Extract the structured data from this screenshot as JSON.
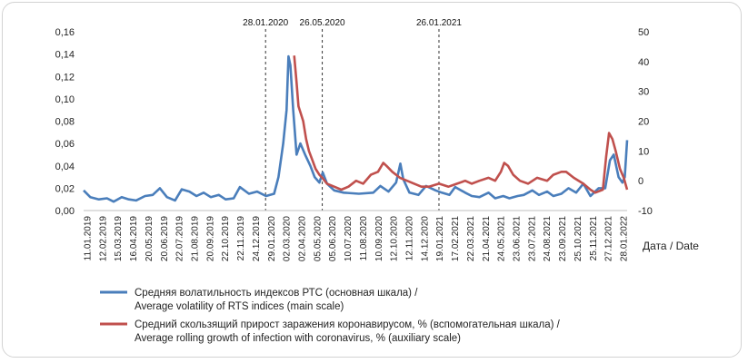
{
  "chart_data": {
    "type": "line",
    "xlabel": "Дата / Date",
    "y_left": {
      "min": 0,
      "max": 0.16,
      "ticks": [
        "0,00",
        "0,02",
        "0,04",
        "0,06",
        "0,08",
        "0,10",
        "0,12",
        "0,14",
        "0,16"
      ]
    },
    "y_right": {
      "min": -10,
      "max": 50,
      "ticks": [
        "-10",
        "0",
        "10",
        "20",
        "30",
        "40",
        "50"
      ]
    },
    "x_range": [
      "2019-01-11",
      "2022-02-25"
    ],
    "x_ticks": [
      "11.01.2019",
      "12.02.2019",
      "15.03.2019",
      "16.04.2019",
      "20.05.2019",
      "20.06.2019",
      "22.07.2019",
      "21.08.2019",
      "20.09.2019",
      "22.10.2019",
      "22.11.2019",
      "24.12.2019",
      "29.01.2020",
      "02.03.2020",
      "02.04.2020",
      "05.05.2020",
      "05.06.2020",
      "10.07.2020",
      "11.08.2020",
      "10.09.2020",
      "12.10.2020",
      "12.11.2020",
      "14.12.2020",
      "19.01.2021",
      "17.02.2021",
      "22.03.2021",
      "21.04.2021",
      "24.05.2021",
      "23.06.2021",
      "23.07.2021",
      "24.08.2021",
      "23.09.2021",
      "25.10.2021",
      "25.11.2021",
      "27.12.2021",
      "28.01.2022"
    ],
    "events": [
      {
        "date": "2020-01-28",
        "label": "28.01.2020"
      },
      {
        "date": "2020-05-26",
        "label": "26.05.2020"
      },
      {
        "date": "2021-01-26",
        "label": "26.01.2021"
      }
    ],
    "series": [
      {
        "name": "Средняя волатильность индексов РТС (основная шкала) / Average volatility of RTS indices (main scale)",
        "axis": "left",
        "color": "#4a7ebb",
        "points": [
          [
            "2019-01-11",
            0.018
          ],
          [
            "2019-01-25",
            0.012
          ],
          [
            "2019-02-12",
            0.01
          ],
          [
            "2019-03-01",
            0.011
          ],
          [
            "2019-03-15",
            0.008
          ],
          [
            "2019-04-01",
            0.012
          ],
          [
            "2019-04-16",
            0.01
          ],
          [
            "2019-05-01",
            0.009
          ],
          [
            "2019-05-20",
            0.013
          ],
          [
            "2019-06-05",
            0.014
          ],
          [
            "2019-06-20",
            0.02
          ],
          [
            "2019-07-05",
            0.012
          ],
          [
            "2019-07-22",
            0.009
          ],
          [
            "2019-08-05",
            0.019
          ],
          [
            "2019-08-21",
            0.017
          ],
          [
            "2019-09-05",
            0.013
          ],
          [
            "2019-09-20",
            0.016
          ],
          [
            "2019-10-05",
            0.012
          ],
          [
            "2019-10-22",
            0.014
          ],
          [
            "2019-11-05",
            0.01
          ],
          [
            "2019-11-22",
            0.011
          ],
          [
            "2019-12-05",
            0.021
          ],
          [
            "2019-12-24",
            0.015
          ],
          [
            "2020-01-10",
            0.017
          ],
          [
            "2020-01-29",
            0.013
          ],
          [
            "2020-02-15",
            0.015
          ],
          [
            "2020-02-24",
            0.03
          ],
          [
            "2020-03-05",
            0.06
          ],
          [
            "2020-03-12",
            0.09
          ],
          [
            "2020-03-16",
            0.138
          ],
          [
            "2020-03-20",
            0.13
          ],
          [
            "2020-03-26",
            0.09
          ],
          [
            "2020-04-02",
            0.05
          ],
          [
            "2020-04-10",
            0.06
          ],
          [
            "2020-04-20",
            0.05
          ],
          [
            "2020-05-01",
            0.04
          ],
          [
            "2020-05-10",
            0.03
          ],
          [
            "2020-05-20",
            0.025
          ],
          [
            "2020-05-27",
            0.034
          ],
          [
            "2020-06-05",
            0.024
          ],
          [
            "2020-06-20",
            0.018
          ],
          [
            "2020-07-10",
            0.016
          ],
          [
            "2020-08-11",
            0.015
          ],
          [
            "2020-09-10",
            0.016
          ],
          [
            "2020-09-25",
            0.022
          ],
          [
            "2020-10-12",
            0.017
          ],
          [
            "2020-10-28",
            0.025
          ],
          [
            "2020-11-06",
            0.042
          ],
          [
            "2020-11-12",
            0.028
          ],
          [
            "2020-11-25",
            0.016
          ],
          [
            "2020-12-14",
            0.014
          ],
          [
            "2020-12-30",
            0.022
          ],
          [
            "2021-01-19",
            0.018
          ],
          [
            "2021-02-01",
            0.016
          ],
          [
            "2021-02-17",
            0.014
          ],
          [
            "2021-03-01",
            0.021
          ],
          [
            "2021-03-22",
            0.016
          ],
          [
            "2021-04-05",
            0.013
          ],
          [
            "2021-04-21",
            0.012
          ],
          [
            "2021-05-10",
            0.016
          ],
          [
            "2021-05-24",
            0.011
          ],
          [
            "2021-06-10",
            0.013
          ],
          [
            "2021-06-23",
            0.011
          ],
          [
            "2021-07-10",
            0.013
          ],
          [
            "2021-07-23",
            0.014
          ],
          [
            "2021-08-10",
            0.018
          ],
          [
            "2021-08-24",
            0.014
          ],
          [
            "2021-09-10",
            0.017
          ],
          [
            "2021-09-23",
            0.013
          ],
          [
            "2021-10-10",
            0.015
          ],
          [
            "2021-10-25",
            0.02
          ],
          [
            "2021-11-10",
            0.016
          ],
          [
            "2021-11-25",
            0.024
          ],
          [
            "2021-12-10",
            0.013
          ],
          [
            "2021-12-27",
            0.02
          ],
          [
            "2022-01-10",
            0.02
          ],
          [
            "2022-01-20",
            0.045
          ],
          [
            "2022-01-28",
            0.05
          ],
          [
            "2022-02-07",
            0.03
          ],
          [
            "2022-02-15",
            0.025
          ],
          [
            "2022-02-20",
            0.03
          ],
          [
            "2022-02-25",
            0.063
          ]
        ]
      },
      {
        "name": "Средний скользящий прирост заражения коронавирусом, % (вспомогательная шкала) / Average rolling growth of infection with coronavirus, % (auxiliary scale)",
        "axis": "right",
        "color": "#c0504d",
        "points": [
          [
            "2020-03-28",
            42
          ],
          [
            "2020-04-02",
            33
          ],
          [
            "2020-04-06",
            25
          ],
          [
            "2020-04-10",
            23
          ],
          [
            "2020-04-16",
            20
          ],
          [
            "2020-04-22",
            14
          ],
          [
            "2020-04-28",
            10
          ],
          [
            "2020-05-05",
            7
          ],
          [
            "2020-05-12",
            4
          ],
          [
            "2020-05-20",
            2
          ],
          [
            "2020-05-26",
            1
          ],
          [
            "2020-06-05",
            -1
          ],
          [
            "2020-06-20",
            -2
          ],
          [
            "2020-07-05",
            -3
          ],
          [
            "2020-07-20",
            -2
          ],
          [
            "2020-08-05",
            0
          ],
          [
            "2020-08-20",
            -1
          ],
          [
            "2020-09-05",
            2
          ],
          [
            "2020-09-20",
            3
          ],
          [
            "2020-10-01",
            6
          ],
          [
            "2020-10-08",
            5
          ],
          [
            "2020-10-20",
            3
          ],
          [
            "2020-11-05",
            1
          ],
          [
            "2020-11-20",
            0
          ],
          [
            "2020-12-05",
            -1
          ],
          [
            "2020-12-20",
            -2
          ],
          [
            "2021-01-05",
            -2
          ],
          [
            "2021-01-26",
            -1
          ],
          [
            "2021-02-15",
            -2
          ],
          [
            "2021-03-05",
            -1
          ],
          [
            "2021-03-22",
            0
          ],
          [
            "2021-04-05",
            -1
          ],
          [
            "2021-04-21",
            0
          ],
          [
            "2021-05-10",
            1
          ],
          [
            "2021-05-24",
            0
          ],
          [
            "2021-06-05",
            3
          ],
          [
            "2021-06-12",
            6
          ],
          [
            "2021-06-20",
            5
          ],
          [
            "2021-07-01",
            2
          ],
          [
            "2021-07-15",
            0
          ],
          [
            "2021-08-01",
            -1
          ],
          [
            "2021-08-20",
            1
          ],
          [
            "2021-09-10",
            0
          ],
          [
            "2021-09-23",
            2
          ],
          [
            "2021-10-10",
            3
          ],
          [
            "2021-10-20",
            3
          ],
          [
            "2021-11-05",
            1
          ],
          [
            "2021-11-25",
            -1
          ],
          [
            "2021-12-10",
            -3
          ],
          [
            "2021-12-20",
            -4
          ],
          [
            "2022-01-05",
            -3
          ],
          [
            "2022-01-12",
            8
          ],
          [
            "2022-01-18",
            16
          ],
          [
            "2022-01-25",
            14
          ],
          [
            "2022-02-01",
            10
          ],
          [
            "2022-02-10",
            4
          ],
          [
            "2022-02-18",
            1
          ],
          [
            "2022-02-25",
            -3
          ]
        ]
      }
    ]
  }
}
